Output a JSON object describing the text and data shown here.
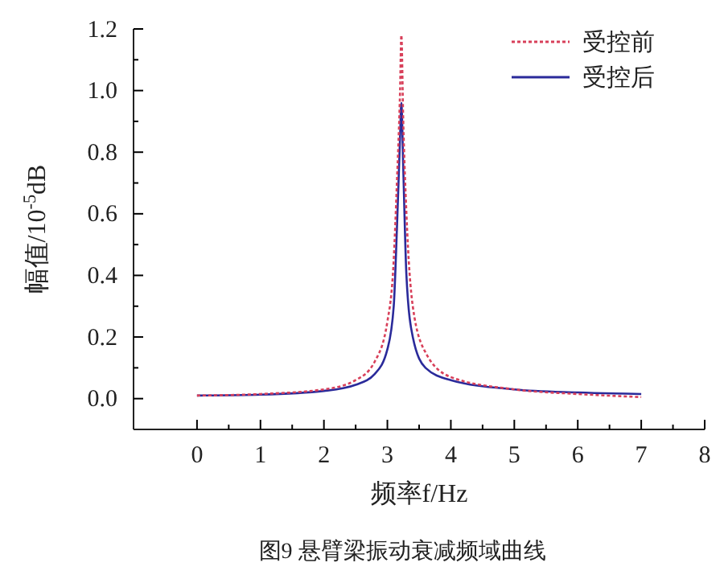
{
  "chart_data": {
    "type": "line",
    "xlabel": "频率f/Hz",
    "ylabel": "幅值/10$^{-5}$dB",
    "annotations": [
      "图9  悬臂梁振动衰减频域曲线"
    ],
    "xlim": [
      -1,
      8
    ],
    "ylim": [
      -0.1,
      1.2
    ],
    "xticks": [
      0,
      {
        "value": 0.5,
        "label": null
      },
      1,
      {
        "value": 1.5,
        "label": null
      },
      2,
      {
        "value": 2.5,
        "label": null
      },
      3,
      {
        "value": 3.5,
        "label": null
      },
      4,
      {
        "value": 4.5,
        "label": null
      },
      5,
      {
        "value": 5.5,
        "label": null
      },
      6,
      {
        "value": 6.5,
        "label": null
      },
      7,
      {
        "value": 7.5,
        "label": null
      },
      8
    ],
    "yticks": [
      {
        "value": 0,
        "label": "0.0"
      },
      {
        "value": 0.1,
        "label": null
      },
      {
        "value": 0.2,
        "label": "0.2"
      },
      {
        "value": 0.3,
        "label": null
      },
      {
        "value": 0.4,
        "label": "0.4"
      },
      {
        "value": 0.5,
        "label": null
      },
      {
        "value": 0.6,
        "label": "0.6"
      },
      {
        "value": 0.7,
        "label": null
      },
      {
        "value": 0.8,
        "label": "0.8"
      },
      {
        "value": 0.9,
        "label": null
      },
      {
        "value": 1,
        "label": "1.0"
      },
      {
        "value": 1.1,
        "label": null
      },
      {
        "value": 1.2,
        "label": "1.2"
      }
    ],
    "grid": false,
    "legend": "top right",
    "series": [
      {
        "name": "受控前",
        "color": "#d8405a",
        "line_style": "dotted",
        "x": [
          0,
          1,
          2,
          2.5,
          2.8,
          3,
          3.1,
          3.15,
          3.2,
          3.22,
          3.25,
          3.3,
          3.4,
          3.6,
          4,
          5,
          6,
          7
        ],
        "values": [
          0.01,
          0.015,
          0.03,
          0.06,
          0.12,
          0.25,
          0.45,
          0.7,
          1.0,
          1.18,
          0.9,
          0.6,
          0.3,
          0.15,
          0.07,
          0.03,
          0.015,
          0.005
        ]
      },
      {
        "name": "受控后",
        "color": "#2a2a9a",
        "line_style": "solid",
        "x": [
          0,
          1,
          2,
          2.5,
          2.8,
          3,
          3.1,
          3.15,
          3.2,
          3.22,
          3.25,
          3.3,
          3.4,
          3.6,
          4,
          5,
          6,
          7
        ],
        "values": [
          0.01,
          0.013,
          0.025,
          0.045,
          0.08,
          0.16,
          0.3,
          0.55,
          0.85,
          0.96,
          0.75,
          0.4,
          0.2,
          0.1,
          0.06,
          0.03,
          0.02,
          0.015
        ]
      }
    ]
  }
}
